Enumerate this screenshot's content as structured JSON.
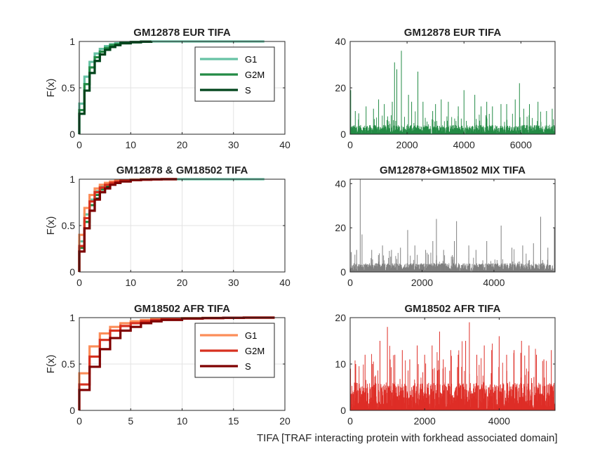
{
  "figure_xlabel": "TIFA [TRAF interacting protein with forkhead associated domain]",
  "chart_data": [
    {
      "id": "ecdf_eur",
      "type": "line",
      "subtype": "ecdf-step",
      "title": "GM12878 EUR TIFA",
      "xlabel": "",
      "ylabel": "F(x)",
      "xlim": [
        0,
        40
      ],
      "ylim": [
        0,
        1
      ],
      "xticks": [
        0,
        10,
        20,
        30,
        40
      ],
      "yticks": [
        0,
        0.5,
        1
      ],
      "grid": true,
      "legend": {
        "placement": "top-right",
        "entries": [
          "G1",
          "G2M",
          "S"
        ]
      },
      "series": [
        {
          "name": "G1",
          "color": "#66c2a4",
          "x": [
            0,
            1,
            2,
            3,
            4,
            5,
            6,
            7,
            8,
            10,
            12,
            14,
            20,
            36
          ],
          "y": [
            0.33,
            0.62,
            0.78,
            0.87,
            0.92,
            0.95,
            0.97,
            0.98,
            0.99,
            0.995,
            0.998,
            1.0,
            1.0,
            1.0
          ]
        },
        {
          "name": "G2M",
          "color": "#238b45",
          "x": [
            0,
            1,
            2,
            3,
            4,
            5,
            6,
            7,
            8,
            10,
            12,
            14
          ],
          "y": [
            0.26,
            0.54,
            0.72,
            0.83,
            0.89,
            0.93,
            0.96,
            0.97,
            0.985,
            0.995,
            0.998,
            1.0
          ]
        },
        {
          "name": "S",
          "color": "#00441b",
          "x": [
            0,
            1,
            2,
            3,
            4,
            5,
            6,
            7,
            8,
            10,
            12,
            14
          ],
          "y": [
            0.22,
            0.47,
            0.66,
            0.79,
            0.86,
            0.91,
            0.94,
            0.96,
            0.98,
            0.99,
            0.997,
            1.0
          ]
        }
      ]
    },
    {
      "id": "counts_eur",
      "type": "bar",
      "subtype": "cell-count-spikes",
      "title": "GM12878 EUR TIFA",
      "color": "#238b45",
      "xlim": [
        0,
        7200
      ],
      "ylim": [
        0,
        40
      ],
      "xticks": [
        0,
        2000,
        4000,
        6000
      ],
      "yticks": [
        0,
        20,
        40
      ],
      "n_cells": 7200,
      "baseline_max": 4,
      "spikes": [
        [
          20,
          19
        ],
        [
          180,
          10
        ],
        [
          300,
          9
        ],
        [
          560,
          12
        ],
        [
          820,
          11
        ],
        [
          1000,
          15
        ],
        [
          1200,
          13
        ],
        [
          1480,
          14
        ],
        [
          1560,
          31
        ],
        [
          1640,
          28
        ],
        [
          1800,
          36
        ],
        [
          2050,
          17
        ],
        [
          2160,
          14
        ],
        [
          2380,
          27
        ],
        [
          2560,
          14
        ],
        [
          2900,
          10
        ],
        [
          3000,
          13
        ],
        [
          3200,
          15
        ],
        [
          3450,
          14
        ],
        [
          3800,
          12
        ],
        [
          4000,
          19
        ],
        [
          4380,
          17
        ],
        [
          4600,
          12
        ],
        [
          4800,
          14
        ],
        [
          5000,
          12
        ],
        [
          5300,
          13
        ],
        [
          5500,
          13
        ],
        [
          5800,
          15
        ],
        [
          5950,
          22
        ],
        [
          6100,
          11
        ],
        [
          6300,
          13
        ],
        [
          6600,
          14
        ],
        [
          6900,
          10
        ],
        [
          7100,
          11
        ]
      ]
    },
    {
      "id": "ecdf_mix",
      "type": "line",
      "subtype": "ecdf-step",
      "title": "GM12878 & GM18502 TIFA",
      "xlabel": "",
      "ylabel": "F(x)",
      "xlim": [
        0,
        40
      ],
      "ylim": [
        0,
        1
      ],
      "xticks": [
        0,
        10,
        20,
        30,
        40
      ],
      "yticks": [
        0,
        0.5,
        1
      ],
      "grid": true,
      "series": [
        {
          "name": "",
          "color": "#66c2a4",
          "x": [
            0,
            1,
            2,
            3,
            4,
            5,
            6,
            7,
            8,
            10,
            12,
            14,
            20,
            36
          ],
          "y": [
            0.33,
            0.62,
            0.78,
            0.87,
            0.92,
            0.95,
            0.97,
            0.98,
            0.99,
            0.995,
            0.998,
            1.0,
            1.0,
            1.0
          ]
        },
        {
          "name": "",
          "color": "#238b45",
          "x": [
            0,
            1,
            2,
            3,
            4,
            5,
            6,
            7,
            8,
            10,
            12,
            14
          ],
          "y": [
            0.26,
            0.54,
            0.72,
            0.83,
            0.89,
            0.93,
            0.96,
            0.97,
            0.985,
            0.995,
            0.998,
            1.0
          ]
        },
        {
          "name": "",
          "color": "#00441b",
          "x": [
            0,
            1,
            2,
            3,
            4,
            5,
            6,
            7,
            8,
            10,
            12,
            14
          ],
          "y": [
            0.22,
            0.47,
            0.66,
            0.79,
            0.86,
            0.91,
            0.94,
            0.96,
            0.98,
            0.99,
            0.997,
            1.0
          ]
        },
        {
          "name": "",
          "color": "#fc8d59",
          "x": [
            0,
            1,
            2,
            3,
            4,
            5,
            6,
            7,
            8,
            10,
            12,
            14,
            16,
            19
          ],
          "y": [
            0.4,
            0.69,
            0.83,
            0.9,
            0.94,
            0.96,
            0.975,
            0.985,
            0.99,
            0.995,
            0.998,
            0.999,
            1.0,
            1.0
          ]
        },
        {
          "name": "",
          "color": "#d7301f",
          "x": [
            0,
            1,
            2,
            3,
            4,
            5,
            6,
            7,
            8,
            10,
            12,
            14,
            16,
            19
          ],
          "y": [
            0.28,
            0.58,
            0.76,
            0.86,
            0.91,
            0.94,
            0.96,
            0.975,
            0.985,
            0.99,
            0.995,
            0.998,
            1.0,
            1.0
          ]
        },
        {
          "name": "",
          "color": "#7f0000",
          "x": [
            0,
            1,
            2,
            3,
            4,
            5,
            6,
            7,
            8,
            10,
            12,
            14,
            16,
            19
          ],
          "y": [
            0.22,
            0.47,
            0.66,
            0.78,
            0.86,
            0.9,
            0.94,
            0.96,
            0.975,
            0.99,
            0.995,
            0.998,
            1.0,
            1.0
          ]
        }
      ]
    },
    {
      "id": "counts_mix",
      "type": "bar",
      "subtype": "cell-count-spikes",
      "title": "GM12878+GM18502 MIX TIFA",
      "color": "#7f7f7f",
      "xlim": [
        0,
        5700
      ],
      "ylim": [
        0,
        42
      ],
      "xticks": [
        0,
        2000,
        4000
      ],
      "yticks": [
        0,
        20,
        40
      ],
      "n_cells": 5700,
      "baseline_max": 4,
      "spikes": [
        [
          30,
          9
        ],
        [
          180,
          10
        ],
        [
          280,
          42
        ],
        [
          330,
          17
        ],
        [
          600,
          10
        ],
        [
          900,
          12
        ],
        [
          1150,
          10
        ],
        [
          1400,
          11
        ],
        [
          1600,
          19
        ],
        [
          1800,
          12
        ],
        [
          2100,
          10
        ],
        [
          2300,
          14
        ],
        [
          2400,
          24
        ],
        [
          2600,
          10
        ],
        [
          2900,
          14
        ],
        [
          2960,
          23
        ],
        [
          3300,
          12
        ],
        [
          3500,
          10
        ],
        [
          3800,
          14
        ],
        [
          4200,
          21
        ],
        [
          4500,
          11
        ],
        [
          4800,
          12
        ],
        [
          5100,
          13
        ],
        [
          5300,
          25
        ],
        [
          5500,
          11
        ],
        [
          5680,
          20
        ]
      ]
    },
    {
      "id": "ecdf_afr",
      "type": "line",
      "subtype": "ecdf-step",
      "title": "GM18502 AFR TIFA",
      "xlabel": "",
      "ylabel": "F(x)",
      "xlim": [
        0,
        20
      ],
      "ylim": [
        0,
        1
      ],
      "xticks": [
        0,
        5,
        10,
        15,
        20
      ],
      "yticks": [
        0,
        0.5,
        1
      ],
      "grid": true,
      "legend": {
        "placement": "top-right",
        "entries": [
          "G1",
          "G2M",
          "S"
        ]
      },
      "series": [
        {
          "name": "G1",
          "color": "#fc8d59",
          "x": [
            0,
            1,
            2,
            3,
            4,
            5,
            6,
            7,
            8,
            10,
            12,
            14,
            16,
            19
          ],
          "y": [
            0.4,
            0.69,
            0.83,
            0.9,
            0.94,
            0.96,
            0.975,
            0.985,
            0.99,
            0.995,
            0.998,
            0.999,
            1.0,
            1.0
          ]
        },
        {
          "name": "G2M",
          "color": "#d7301f",
          "x": [
            0,
            1,
            2,
            3,
            4,
            5,
            6,
            7,
            8,
            10,
            12,
            14,
            16,
            19
          ],
          "y": [
            0.28,
            0.58,
            0.76,
            0.86,
            0.91,
            0.94,
            0.96,
            0.975,
            0.985,
            0.99,
            0.995,
            0.998,
            1.0,
            1.0
          ]
        },
        {
          "name": "S",
          "color": "#7f0000",
          "x": [
            0,
            1,
            2,
            3,
            4,
            5,
            6,
            7,
            8,
            10,
            12,
            14,
            16,
            19
          ],
          "y": [
            0.22,
            0.47,
            0.66,
            0.78,
            0.86,
            0.9,
            0.94,
            0.96,
            0.975,
            0.99,
            0.995,
            0.998,
            1.0,
            1.0
          ]
        }
      ]
    },
    {
      "id": "counts_afr",
      "type": "bar",
      "subtype": "cell-count-spikes",
      "title": "GM18502 AFR TIFA",
      "color": "#de2d26",
      "xlim": [
        0,
        5500
      ],
      "ylim": [
        0,
        20
      ],
      "xticks": [
        0,
        2000,
        4000
      ],
      "yticks": [
        0,
        10,
        20
      ],
      "n_cells": 5500,
      "baseline_max": 6,
      "spikes": [
        [
          10,
          9
        ],
        [
          150,
          10
        ],
        [
          400,
          12
        ],
        [
          600,
          10
        ],
        [
          800,
          15
        ],
        [
          1000,
          18
        ],
        [
          1200,
          12
        ],
        [
          1400,
          13
        ],
        [
          1600,
          11
        ],
        [
          1800,
          14
        ],
        [
          2000,
          12
        ],
        [
          2200,
          14
        ],
        [
          2400,
          17
        ],
        [
          2500,
          11
        ],
        [
          2700,
          13
        ],
        [
          2900,
          12
        ],
        [
          3100,
          15
        ],
        [
          3200,
          19
        ],
        [
          3400,
          12
        ],
        [
          3600,
          14
        ],
        [
          3800,
          13
        ],
        [
          4000,
          16
        ],
        [
          4200,
          12
        ],
        [
          4400,
          13
        ],
        [
          4600,
          15
        ],
        [
          4800,
          14
        ],
        [
          5000,
          12
        ],
        [
          5200,
          11
        ],
        [
          5400,
          13
        ]
      ]
    }
  ]
}
